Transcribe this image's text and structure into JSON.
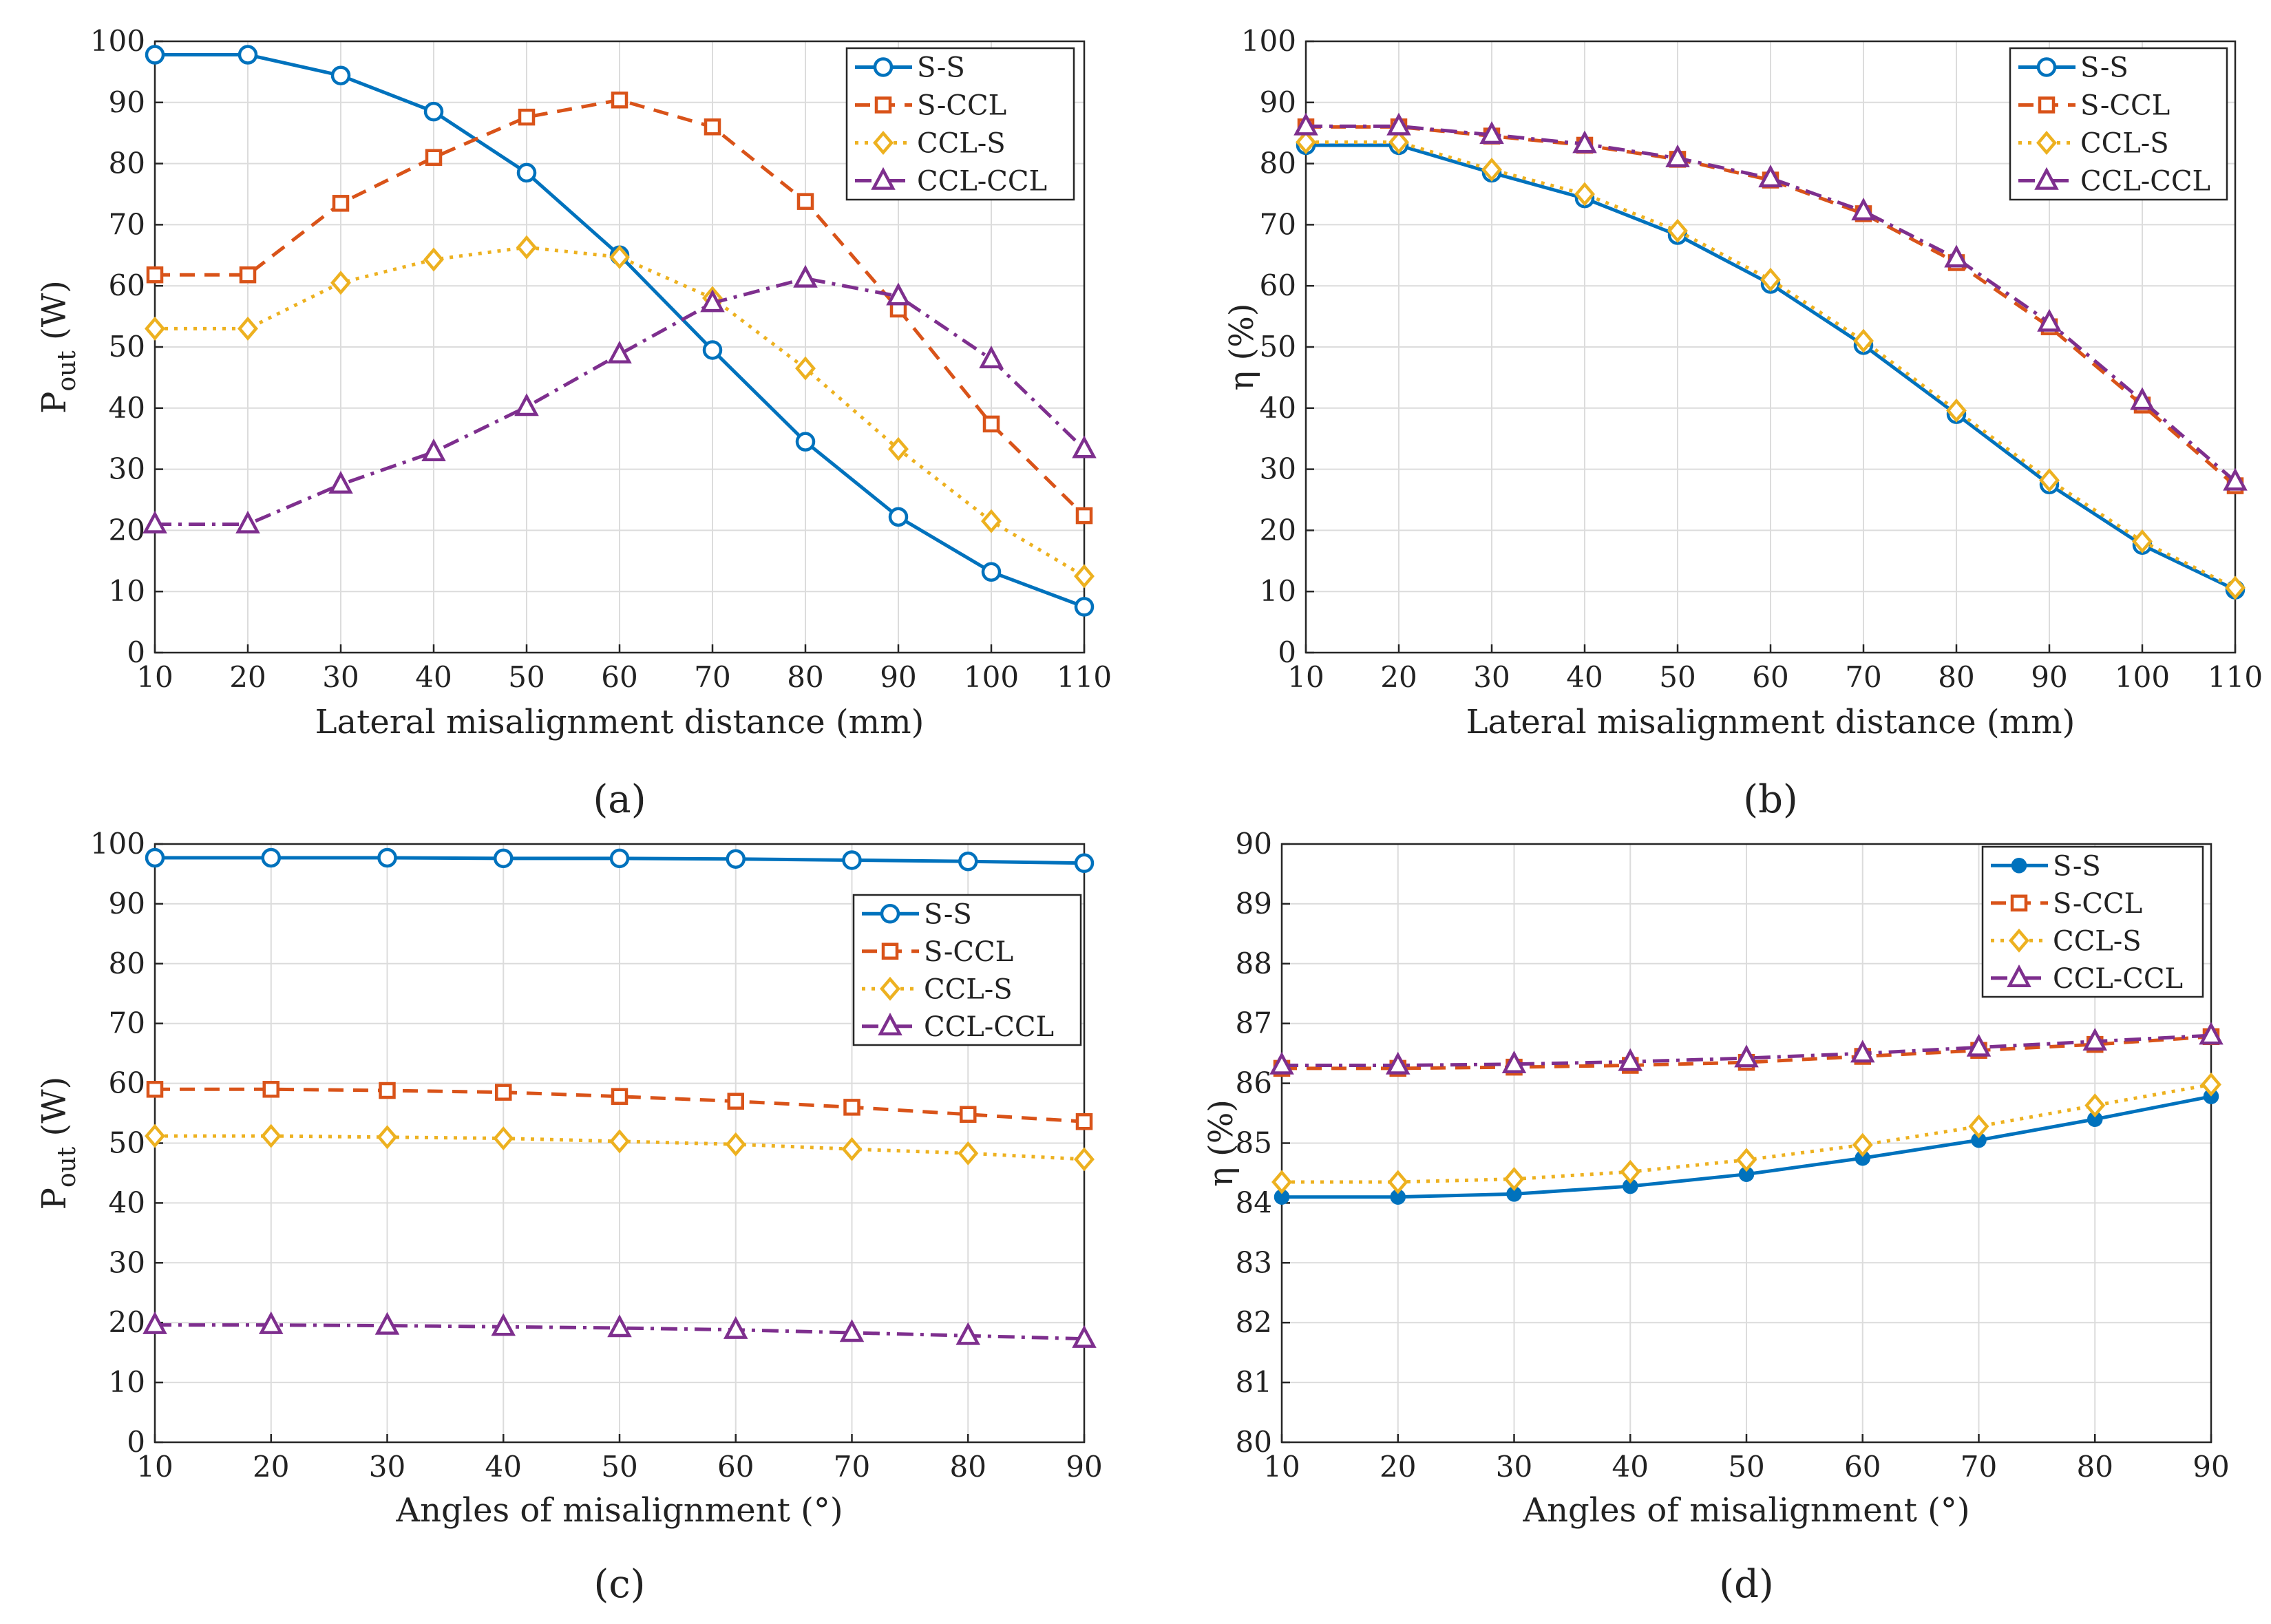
{
  "figure": {
    "panel_labels": [
      "(a)",
      "(b)",
      "(c)",
      "(d)"
    ]
  },
  "series_style": [
    {
      "name": "S-S",
      "color": "#0072BD",
      "dash": "solid",
      "marker": "circle"
    },
    {
      "name": "S-CCL",
      "color": "#D95319",
      "dash": "dash",
      "marker": "square"
    },
    {
      "name": "CCL-S",
      "color": "#EDB120",
      "dash": "dot",
      "marker": "diamond"
    },
    {
      "name": "CCL-CCL",
      "color": "#7E2F8E",
      "dash": "dashdot",
      "marker": "triangle"
    }
  ],
  "chart_data": [
    {
      "id": "a",
      "type": "line",
      "panel_label": "(a)",
      "title": "",
      "xlabel": "Lateral misalignment distance (mm)",
      "ylabel_main": "P",
      "ylabel_sub": "out",
      "ylabel_unit": " (W)",
      "x": [
        10,
        20,
        30,
        40,
        50,
        60,
        70,
        80,
        90,
        100,
        110
      ],
      "xlim": [
        10,
        110
      ],
      "ylim": [
        0,
        100
      ],
      "xticks": [
        10,
        20,
        30,
        40,
        50,
        60,
        70,
        80,
        90,
        100,
        110
      ],
      "yticks": [
        0,
        10,
        20,
        30,
        40,
        50,
        60,
        70,
        80,
        90,
        100
      ],
      "grid": true,
      "legend": "top-right",
      "marker_style": "open",
      "series": [
        {
          "name": "S-S",
          "values": [
            97.8,
            97.8,
            94.4,
            88.5,
            78.5,
            65.0,
            49.5,
            34.5,
            22.2,
            13.2,
            7.5
          ]
        },
        {
          "name": "S-CCL",
          "values": [
            61.8,
            61.8,
            73.5,
            81.0,
            87.6,
            90.4,
            86.0,
            73.8,
            56.2,
            37.4,
            22.4
          ]
        },
        {
          "name": "CCL-S",
          "values": [
            53.0,
            53.0,
            60.5,
            64.3,
            66.3,
            64.7,
            58.0,
            46.5,
            33.3,
            21.5,
            12.5
          ]
        },
        {
          "name": "CCL-CCL",
          "values": [
            21.0,
            21.0,
            27.5,
            32.8,
            40.2,
            48.8,
            57.2,
            61.2,
            58.3,
            48.0,
            33.3
          ]
        }
      ]
    },
    {
      "id": "b",
      "type": "line",
      "panel_label": "(b)",
      "title": "",
      "xlabel": "Lateral misalignment distance (mm)",
      "ylabel_main": "η (%)",
      "ylabel_sub": "",
      "ylabel_unit": "",
      "x": [
        10,
        20,
        30,
        40,
        50,
        60,
        70,
        80,
        90,
        100,
        110
      ],
      "xlim": [
        10,
        110
      ],
      "ylim": [
        0,
        100
      ],
      "xticks": [
        10,
        20,
        30,
        40,
        50,
        60,
        70,
        80,
        90,
        100,
        110
      ],
      "yticks": [
        0,
        10,
        20,
        30,
        40,
        50,
        60,
        70,
        80,
        90,
        100
      ],
      "grid": true,
      "legend": "top-right",
      "marker_style": "open",
      "series": [
        {
          "name": "S-S",
          "values": [
            83.0,
            83.0,
            78.5,
            74.3,
            68.3,
            60.3,
            50.3,
            39.0,
            27.5,
            17.6,
            10.3
          ]
        },
        {
          "name": "S-CCL",
          "values": [
            86.0,
            86.0,
            84.5,
            83.0,
            80.7,
            77.3,
            71.8,
            63.8,
            53.3,
            40.5,
            27.3
          ]
        },
        {
          "name": "CCL-S",
          "values": [
            83.5,
            83.5,
            79.0,
            75.0,
            69.0,
            61.0,
            51.0,
            39.6,
            28.2,
            18.2,
            10.6
          ]
        },
        {
          "name": "CCL-CCL",
          "values": [
            86.1,
            86.1,
            84.7,
            83.2,
            80.9,
            77.6,
            72.2,
            64.5,
            54.0,
            41.2,
            28.0
          ]
        }
      ]
    },
    {
      "id": "c",
      "type": "line",
      "panel_label": "(c)",
      "title": "",
      "xlabel": "Angles of misalignment (°)",
      "ylabel_main": "P",
      "ylabel_sub": "out",
      "ylabel_unit": " (W)",
      "x": [
        10,
        20,
        30,
        40,
        50,
        60,
        70,
        80,
        90
      ],
      "xlim": [
        10,
        90
      ],
      "ylim": [
        0,
        100
      ],
      "xticks": [
        10,
        20,
        30,
        40,
        50,
        60,
        70,
        80,
        90
      ],
      "yticks": [
        0,
        10,
        20,
        30,
        40,
        50,
        60,
        70,
        80,
        90,
        100
      ],
      "grid": true,
      "legend": "right",
      "marker_style": "open",
      "series": [
        {
          "name": "S-S",
          "values": [
            97.7,
            97.7,
            97.7,
            97.6,
            97.6,
            97.5,
            97.3,
            97.1,
            96.8
          ]
        },
        {
          "name": "S-CCL",
          "values": [
            59.0,
            59.0,
            58.8,
            58.5,
            57.8,
            57.0,
            56.0,
            54.8,
            53.6
          ]
        },
        {
          "name": "CCL-S",
          "values": [
            51.2,
            51.2,
            51.0,
            50.8,
            50.3,
            49.8,
            49.0,
            48.3,
            47.3
          ]
        },
        {
          "name": "CCL-CCL",
          "values": [
            19.6,
            19.6,
            19.5,
            19.3,
            19.1,
            18.8,
            18.3,
            17.8,
            17.3
          ]
        }
      ]
    },
    {
      "id": "d",
      "type": "line",
      "panel_label": "(d)",
      "title": "",
      "xlabel": "Angles of misalignment (°)",
      "ylabel_main": "η (%)",
      "ylabel_sub": "",
      "ylabel_unit": "",
      "x": [
        10,
        20,
        30,
        40,
        50,
        60,
        70,
        80,
        90
      ],
      "xlim": [
        10,
        90
      ],
      "ylim": [
        80,
        90
      ],
      "xticks": [
        10,
        20,
        30,
        40,
        50,
        60,
        70,
        80,
        90
      ],
      "yticks": [
        80,
        81,
        82,
        83,
        84,
        85,
        86,
        87,
        88,
        89,
        90
      ],
      "grid": true,
      "legend": "top-right",
      "marker_style": "mixed",
      "series": [
        {
          "name": "S-S",
          "values": [
            84.1,
            84.1,
            84.15,
            84.28,
            84.48,
            84.75,
            85.05,
            85.4,
            85.78
          ]
        },
        {
          "name": "S-CCL",
          "values": [
            86.25,
            86.25,
            86.27,
            86.3,
            86.35,
            86.45,
            86.55,
            86.65,
            86.78
          ]
        },
        {
          "name": "CCL-S",
          "values": [
            84.35,
            84.35,
            84.4,
            84.52,
            84.72,
            84.97,
            85.28,
            85.63,
            85.98
          ]
        },
        {
          "name": "CCL-CCL",
          "values": [
            86.3,
            86.3,
            86.32,
            86.36,
            86.42,
            86.5,
            86.6,
            86.7,
            86.8
          ]
        }
      ]
    }
  ]
}
